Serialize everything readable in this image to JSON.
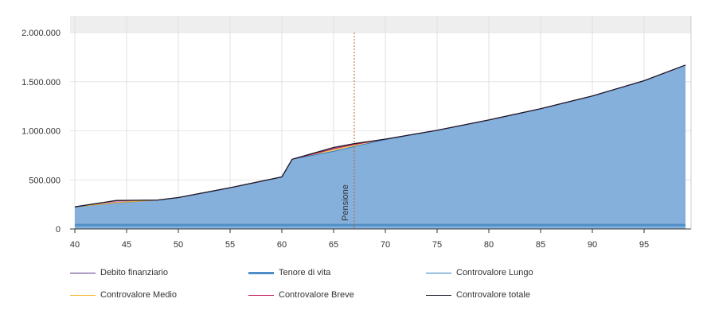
{
  "chart_data": {
    "type": "area",
    "title": "",
    "xlabel": "",
    "ylabel": "",
    "xlim": [
      40,
      99
    ],
    "ylim": [
      0,
      2000000
    ],
    "x_ticks": [
      "40",
      "45",
      "50",
      "55",
      "60",
      "65",
      "70",
      "75",
      "80",
      "85",
      "90",
      "95"
    ],
    "y_ticks": [
      {
        "value": 0,
        "label": "0"
      },
      {
        "value": 500000,
        "label": "500.000"
      },
      {
        "value": 1000000,
        "label": "1.000.000"
      },
      {
        "value": 1500000,
        "label": "1.500.000"
      },
      {
        "value": 2000000,
        "label": "2.000.000"
      }
    ],
    "grid": true,
    "legend_position": "bottom",
    "annotation": {
      "label": "Pensione",
      "x": 67,
      "color": "#b5651d"
    },
    "series": [
      {
        "name": "Debito finanziario",
        "color": "#5b3a8c",
        "values": []
      },
      {
        "name": "Tenore di vita",
        "color": "#4e8fc7",
        "x": [
          40,
          99
        ],
        "values": [
          40000,
          40000
        ]
      },
      {
        "name": "Controvalore Lungo",
        "color": "#2f7fc1",
        "x": [
          40,
          44,
          48,
          50,
          55,
          60,
          61,
          65,
          67,
          70,
          75,
          80,
          85,
          90,
          95,
          99
        ],
        "values": [
          225000,
          265000,
          295000,
          320000,
          420000,
          530000,
          710000,
          790000,
          840000,
          910000,
          1005000,
          1110000,
          1225000,
          1355000,
          1510000,
          1670000
        ]
      },
      {
        "name": "Controvalore Medio",
        "color": "#f0b429",
        "x": [
          40,
          44,
          48,
          50,
          55,
          60,
          61,
          65,
          67,
          70,
          75,
          80,
          85,
          90,
          95,
          99
        ],
        "values": [
          225000,
          268000,
          295000,
          320000,
          420000,
          530000,
          710000,
          815000,
          860000,
          915000,
          1005000,
          1110000,
          1225000,
          1355000,
          1510000,
          1670000
        ]
      },
      {
        "name": "Controvalore Breve",
        "color": "#c2185b",
        "x": [
          40,
          44,
          48,
          50,
          55,
          60,
          61,
          65,
          67,
          70,
          75,
          80,
          85,
          90,
          95,
          99
        ],
        "values": [
          225000,
          288000,
          295000,
          320000,
          420000,
          530000,
          710000,
          815000,
          860000,
          915000,
          1005000,
          1110000,
          1225000,
          1355000,
          1510000,
          1670000
        ]
      },
      {
        "name": "Controvalore totale",
        "color": "#1a1a2e",
        "x": [
          40,
          44,
          48,
          50,
          55,
          60,
          61,
          65,
          67,
          70,
          75,
          80,
          85,
          90,
          95,
          99
        ],
        "values": [
          225000,
          290000,
          295000,
          320000,
          420000,
          530000,
          710000,
          830000,
          870000,
          915000,
          1005000,
          1110000,
          1225000,
          1355000,
          1510000,
          1670000
        ]
      }
    ]
  },
  "legend": [
    {
      "label": "Debito finanziario",
      "color": "#5b3a8c",
      "thick": false
    },
    {
      "label": "Tenore di vita",
      "color": "#4e8fc7",
      "thick": true
    },
    {
      "label": "Controvalore Lungo",
      "color": "#2f7fc1",
      "thick": false
    },
    {
      "label": "Controvalore Medio",
      "color": "#f0b429",
      "thick": false
    },
    {
      "label": "Controvalore Breve",
      "color": "#c2185b",
      "thick": false
    },
    {
      "label": "Controvalore totale",
      "color": "#1a1a2e",
      "thick": false
    }
  ]
}
